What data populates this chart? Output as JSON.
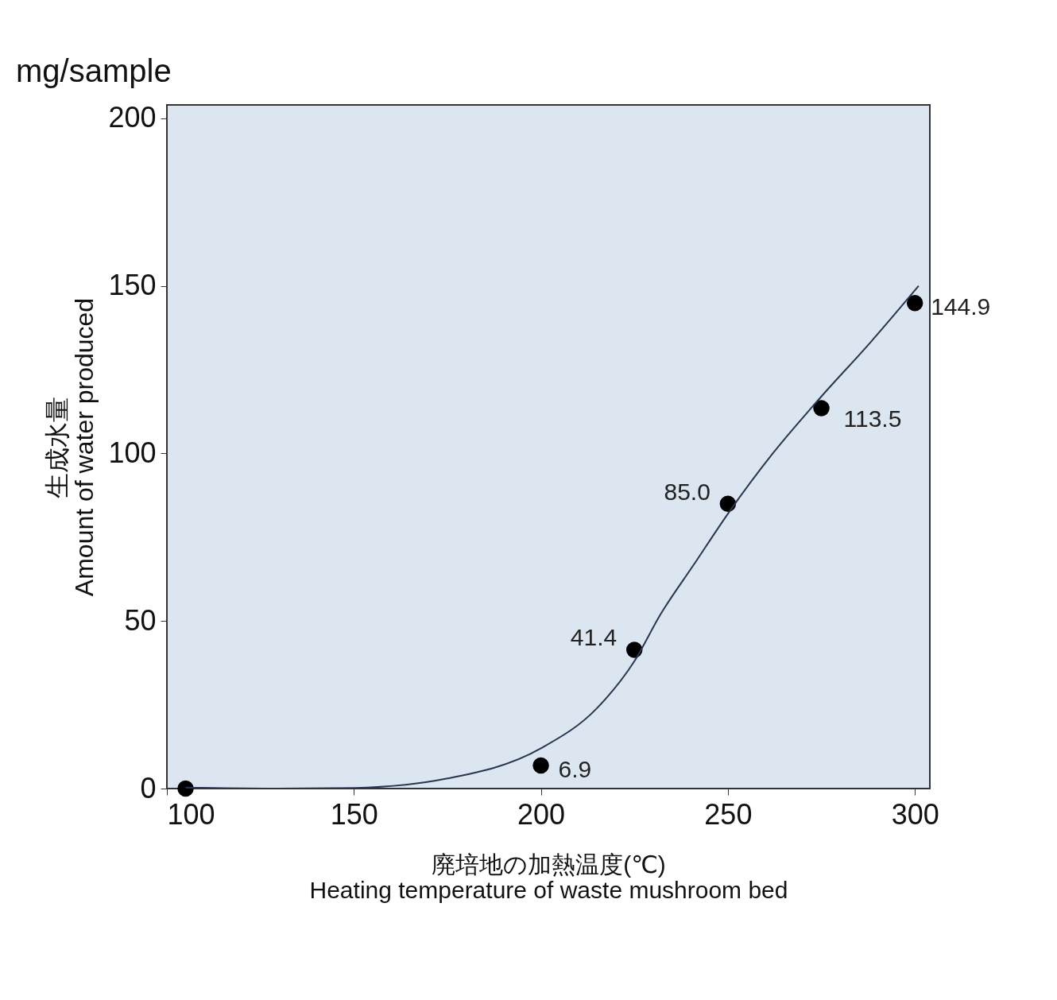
{
  "chart_data": {
    "type": "scatter",
    "xlabel": "廃培地の加熱温度(℃)\nHeating temperature of waste mushroom bed",
    "ylabel": "生成水量\nAmount of water produced",
    "annotations": [
      "mg/sample"
    ],
    "x": [
      105,
      200,
      225,
      250,
      275,
      300
    ],
    "series": [
      {
        "color": "#000000",
        "values": [
          0,
          6.9,
          41.4,
          85.0,
          113.5,
          144.9
        ],
        "value_labels": [
          null,
          "6.9",
          "41.4",
          "85.0",
          "113.5",
          "144.9"
        ],
        "marker": "circle"
      },
      {
        "type": "line",
        "color": "#2a3550",
        "x": [
          105,
          130,
          150,
          175,
          200,
          215,
          225,
          232,
          241,
          250,
          262,
          275,
          288,
          301
        ],
        "values": [
          0.3,
          0,
          0.2,
          3,
          12,
          24,
          38,
          52,
          67,
          82,
          100,
          117,
          133,
          150
        ],
        "marker": "none"
      }
    ],
    "xlim": [
      100,
      304
    ],
    "xticks": [
      100,
      150,
      200,
      250,
      300
    ],
    "ylim": [
      0,
      204
    ],
    "yticks": [
      0,
      50,
      100,
      150,
      200
    ],
    "grid": false,
    "legend": false
  }
}
